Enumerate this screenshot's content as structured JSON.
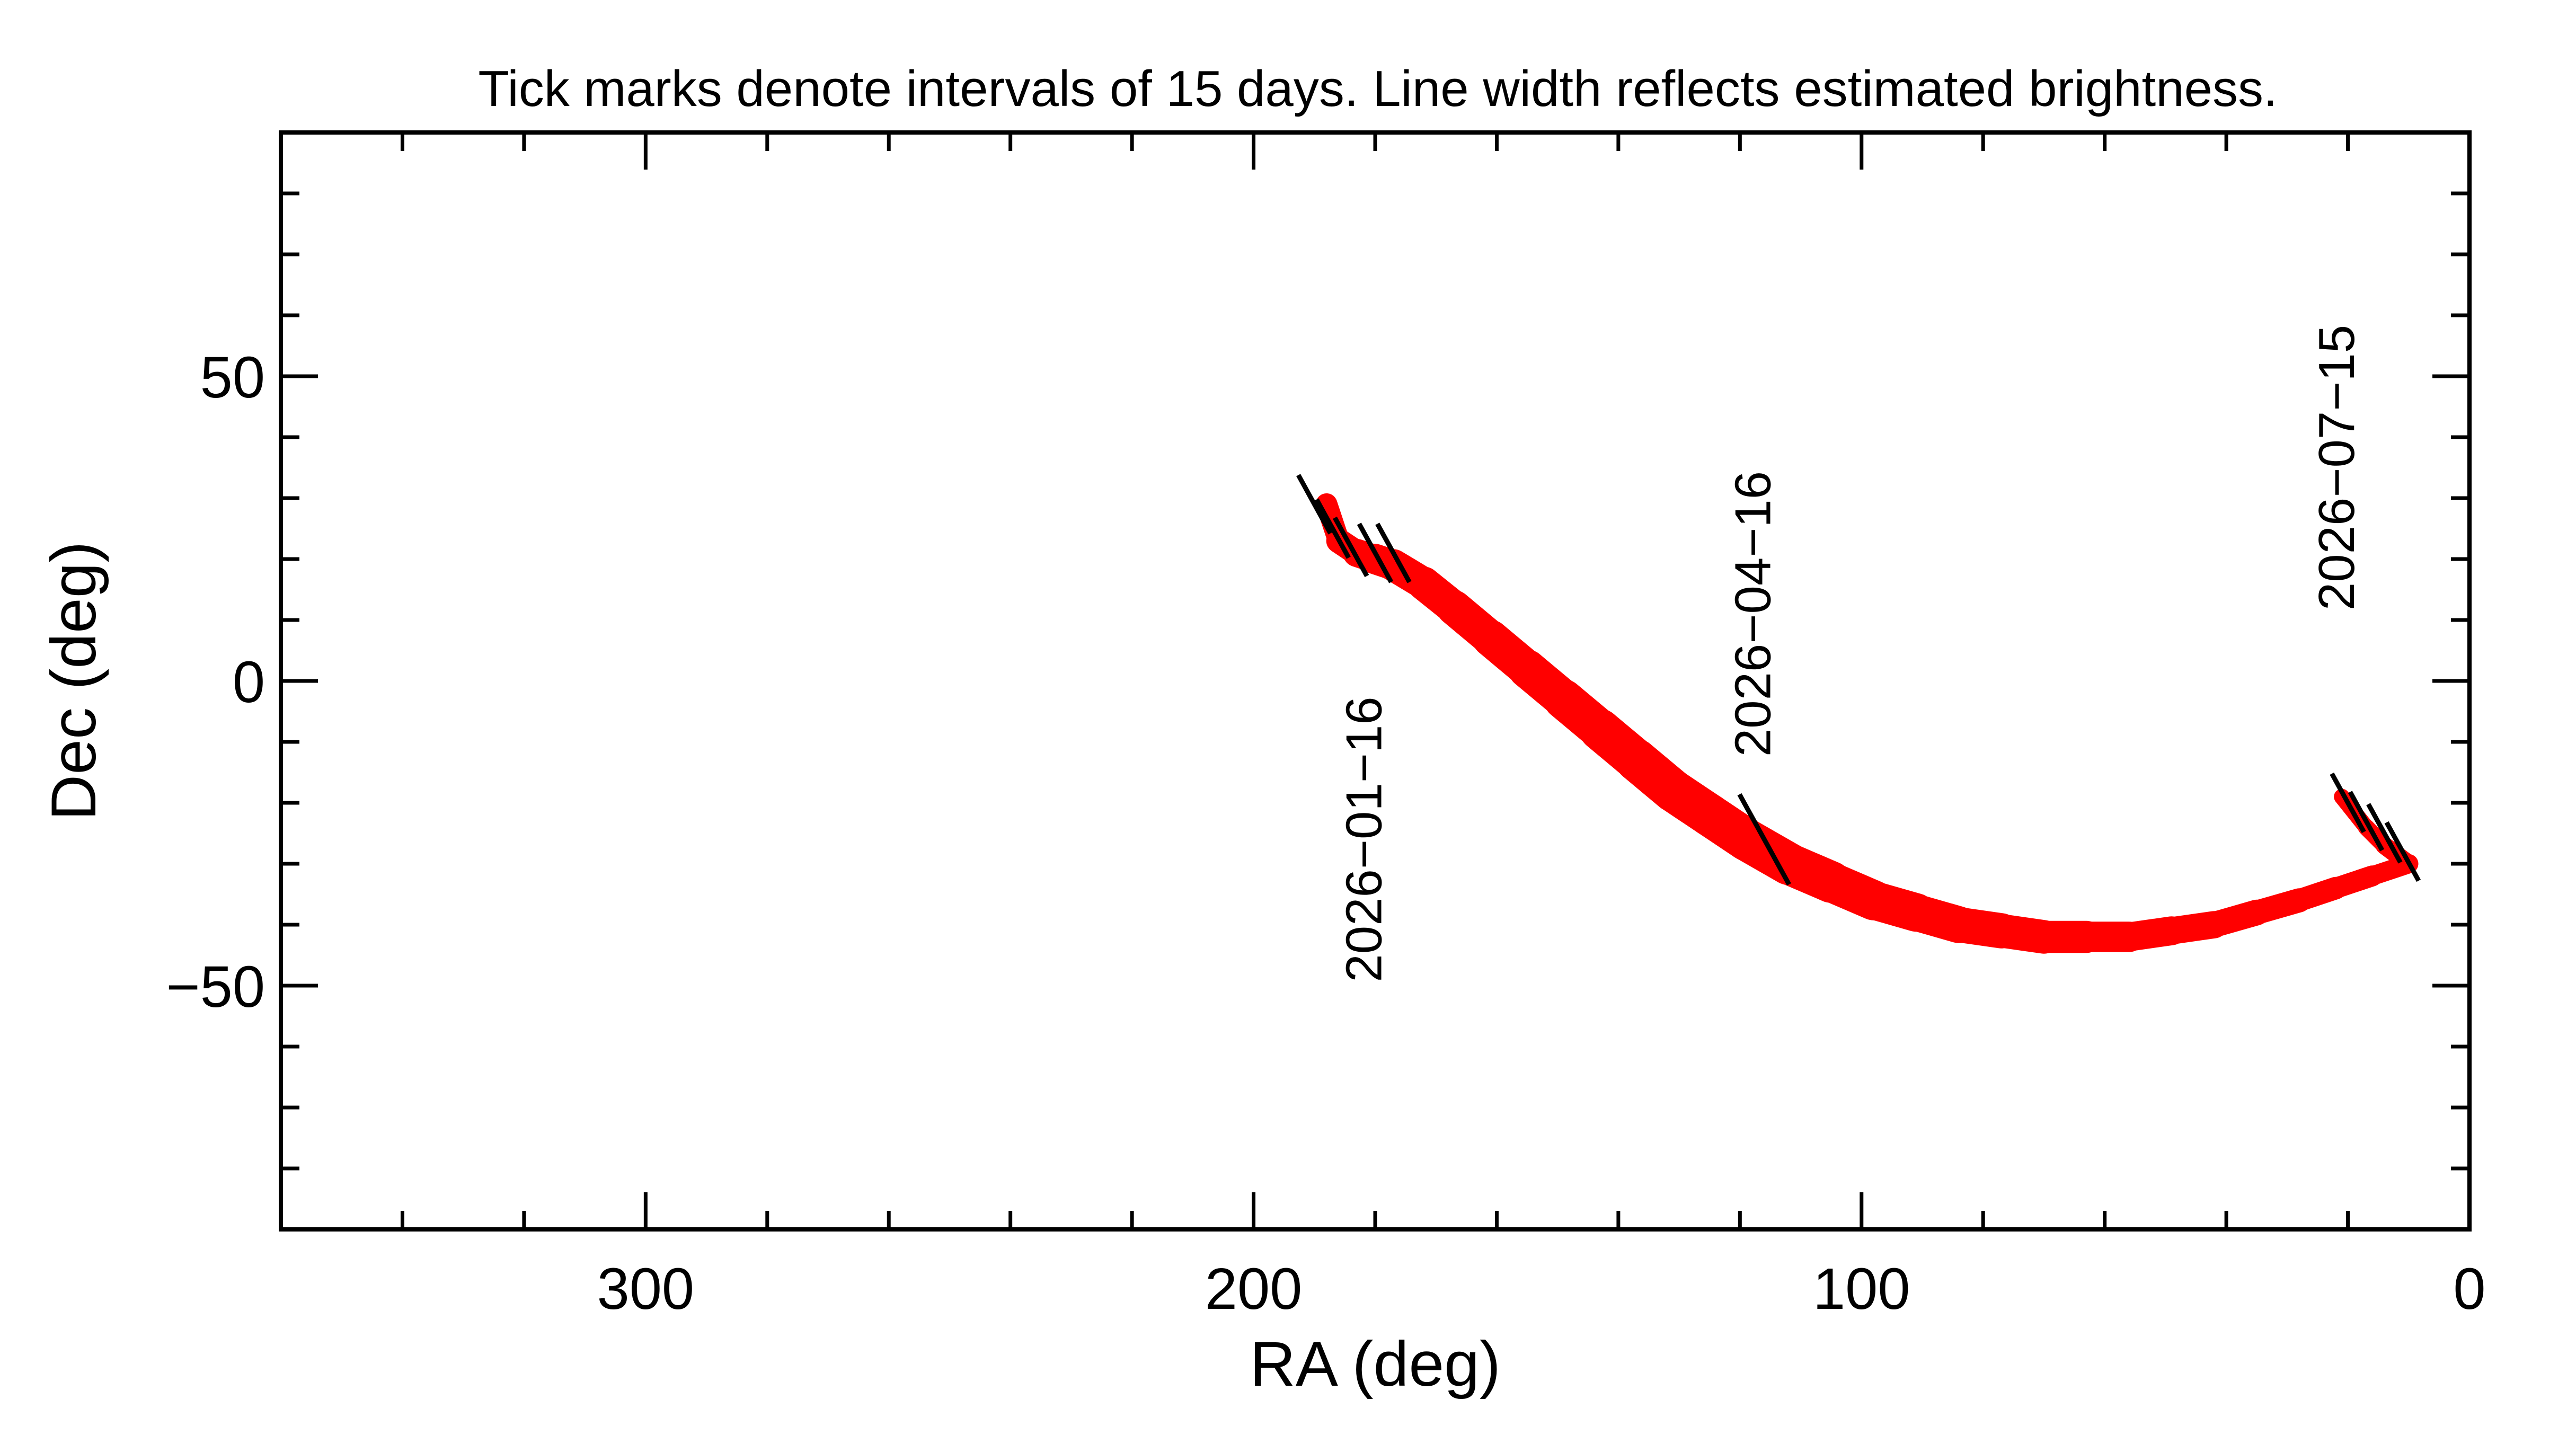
{
  "chart_data": {
    "type": "line",
    "title": "Tick marks denote intervals of 15 days.  Line width reflects estimated brightness.",
    "xlabel": "RA (deg)",
    "ylabel": "Dec (deg)",
    "xlim": [
      360,
      0
    ],
    "ylim": [
      -90,
      90
    ],
    "x_ticks": [
      300,
      200,
      100,
      0
    ],
    "y_ticks": [
      50,
      0,
      -50
    ],
    "x_tick_labels": [
      "300",
      "200",
      "100",
      "0"
    ],
    "y_tick_labels": [
      "50",
      "0",
      "−50"
    ],
    "grid": false,
    "line_color": "#ff0000",
    "tick_mark_color": "#000000",
    "series": [
      {
        "values": [
          {
            "ra": 188,
            "dec": 29,
            "w": 0.3
          },
          {
            "ra": 186,
            "dec": 23,
            "w": 0.4
          },
          {
            "ra": 183,
            "dec": 21,
            "w": 0.5
          },
          {
            "ra": 180,
            "dec": 20,
            "w": 0.6
          },
          {
            "ra": 177,
            "dec": 19,
            "w": 0.65
          },
          {
            "ra": 172,
            "dec": 16,
            "w": 0.7
          },
          {
            "ra": 167,
            "dec": 12,
            "w": 0.75
          },
          {
            "ra": 161,
            "dec": 7,
            "w": 0.8
          },
          {
            "ra": 155,
            "dec": 2,
            "w": 0.85
          },
          {
            "ra": 149,
            "dec": -3,
            "w": 0.9
          },
          {
            "ra": 143,
            "dec": -8,
            "w": 0.95
          },
          {
            "ra": 137,
            "dec": -13,
            "w": 1.0
          },
          {
            "ra": 131,
            "dec": -18,
            "w": 1.0
          },
          {
            "ra": 125,
            "dec": -22,
            "w": 1.0
          },
          {
            "ra": 119,
            "dec": -26,
            "w": 1.0
          },
          {
            "ra": 112,
            "dec": -30,
            "w": 1.0
          },
          {
            "ra": 105,
            "dec": -33,
            "w": 0.95
          },
          {
            "ra": 98,
            "dec": -36,
            "w": 0.9
          },
          {
            "ra": 91,
            "dec": -38,
            "w": 0.85
          },
          {
            "ra": 84,
            "dec": -40,
            "w": 0.8
          },
          {
            "ra": 77,
            "dec": -41,
            "w": 0.75
          },
          {
            "ra": 70,
            "dec": -42,
            "w": 0.7
          },
          {
            "ra": 63,
            "dec": -42,
            "w": 0.65
          },
          {
            "ra": 56,
            "dec": -42,
            "w": 0.6
          },
          {
            "ra": 49,
            "dec": -41,
            "w": 0.55
          },
          {
            "ra": 42,
            "dec": -40,
            "w": 0.5
          },
          {
            "ra": 35,
            "dec": -38,
            "w": 0.45
          },
          {
            "ra": 28,
            "dec": -36,
            "w": 0.4
          },
          {
            "ra": 22,
            "dec": -34,
            "w": 0.35
          },
          {
            "ra": 16,
            "dec": -32,
            "w": 0.3
          },
          {
            "ra": 10,
            "dec": -30,
            "w": 0.25
          },
          {
            "ra": 14,
            "dec": -27,
            "w": 0.2
          },
          {
            "ra": 17,
            "dec": -24,
            "w": 0.18
          },
          {
            "ra": 21,
            "dec": -19,
            "w": 0.15
          }
        ]
      }
    ],
    "tick_marks": [
      {
        "ra": 190,
        "dec": 29
      },
      {
        "ra": 187,
        "dec": 25
      },
      {
        "ra": 184,
        "dec": 22
      },
      {
        "ra": 180,
        "dec": 21
      },
      {
        "ra": 177,
        "dec": 21
      },
      {
        "ra": 116,
        "dec": -26
      },
      {
        "ra": 20,
        "dec": -20
      },
      {
        "ra": 17,
        "dec": -23
      },
      {
        "ra": 14,
        "dec": -25
      },
      {
        "ra": 11,
        "dec": -28
      }
    ],
    "annotations": [
      {
        "text": "2026−01−16",
        "ra": 179,
        "dec": -26
      },
      {
        "text": "2026−04−16",
        "ra": 115,
        "dec": 11
      },
      {
        "text": "2026−07−15",
        "ra": 19,
        "dec": 35
      }
    ]
  }
}
